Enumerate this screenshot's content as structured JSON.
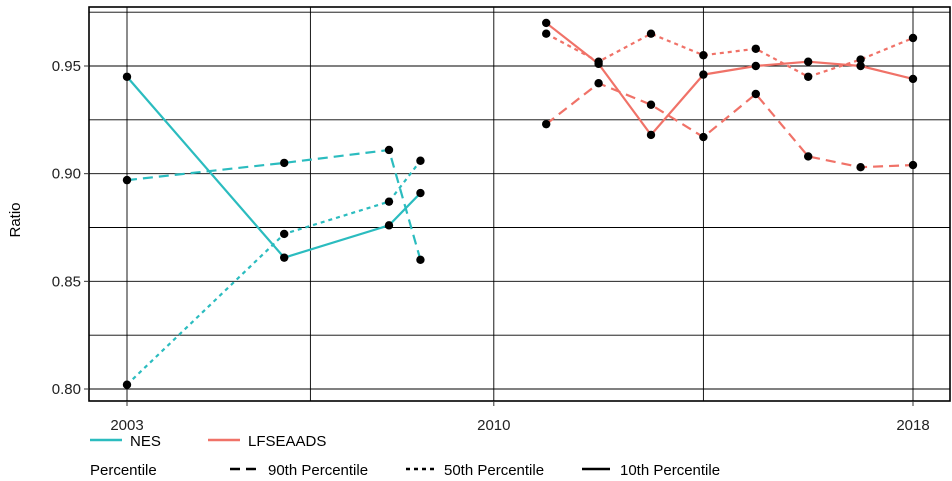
{
  "chart_data": {
    "type": "line",
    "title": "",
    "xlabel": "",
    "ylabel": "Ratio",
    "xlim": [
      2003,
      2018
    ],
    "ylim": [
      0.8,
      0.975
    ],
    "x_ticks": [
      2003,
      2010,
      2018
    ],
    "x_tick_labels": [
      "2003",
      "2010",
      "2018"
    ],
    "y_ticks": [
      0.8,
      0.85,
      0.9,
      0.95
    ],
    "y_tick_labels": [
      "0.80",
      "0.85",
      "0.90",
      "0.95"
    ],
    "grid": true,
    "legend_position": "bottom",
    "legend": {
      "source_entries": [
        {
          "name": "NES",
          "color": "#2bbcbf"
        },
        {
          "name": "LFSEAADS",
          "color": "#f07268"
        }
      ],
      "percentile_title": "Percentile",
      "percentile_entries": [
        {
          "name": "90th Percentile",
          "style": "dashed"
        },
        {
          "name": "50th Percentile",
          "style": "dotted"
        },
        {
          "name": "10th Percentile",
          "style": "solid"
        }
      ]
    },
    "series": [
      {
        "source": "NES",
        "percentile": "90th Percentile",
        "style": "dashed",
        "color": "#2bbcbf",
        "x": [
          2003,
          2006,
          2008,
          2008.6
        ],
        "y": [
          0.897,
          0.905,
          0.911,
          0.86
        ]
      },
      {
        "source": "NES",
        "percentile": "50th Percentile",
        "style": "dotted",
        "color": "#2bbcbf",
        "x": [
          2003,
          2006,
          2008,
          2008.6
        ],
        "y": [
          0.802,
          0.872,
          0.887,
          0.906
        ]
      },
      {
        "source": "NES",
        "percentile": "10th Percentile",
        "style": "solid",
        "color": "#2bbcbf",
        "x": [
          2003,
          2006,
          2008,
          2008.6
        ],
        "y": [
          0.945,
          0.861,
          0.876,
          0.891
        ]
      },
      {
        "source": "LFSEAADS",
        "percentile": "90th Percentile",
        "style": "dashed",
        "color": "#f07268",
        "x": [
          2011,
          2012,
          2013,
          2014,
          2015,
          2016,
          2017,
          2018
        ],
        "y": [
          0.923,
          0.942,
          0.932,
          0.917,
          0.937,
          0.908,
          0.903,
          0.904
        ]
      },
      {
        "source": "LFSEAADS",
        "percentile": "50th Percentile",
        "style": "dotted",
        "color": "#f07268",
        "x": [
          2011,
          2012,
          2013,
          2014,
          2015,
          2016,
          2017,
          2018
        ],
        "y": [
          0.965,
          0.952,
          0.965,
          0.955,
          0.958,
          0.945,
          0.953,
          0.963
        ]
      },
      {
        "source": "LFSEAADS",
        "percentile": "10th Percentile",
        "style": "solid",
        "color": "#f07268",
        "x": [
          2011,
          2012,
          2013,
          2014,
          2015,
          2016,
          2017,
          2018
        ],
        "y": [
          0.97,
          0.951,
          0.918,
          0.946,
          0.95,
          0.952,
          0.95,
          0.944
        ]
      }
    ]
  }
}
